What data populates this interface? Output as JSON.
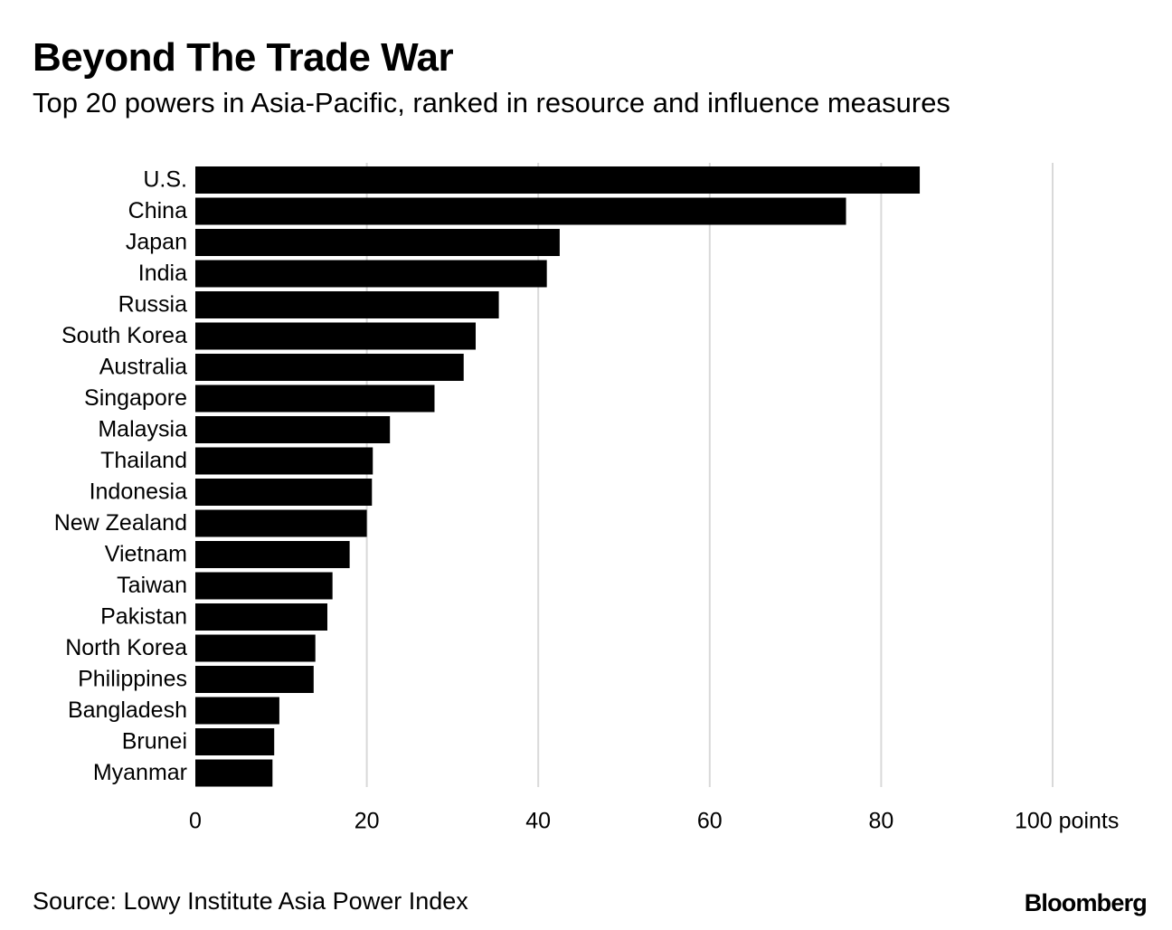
{
  "header": {
    "title": "Beyond The Trade War",
    "subtitle": "Top 20 powers in Asia-Pacific, ranked in resource and influence measures"
  },
  "footer": {
    "source": "Source: Lowy Institute Asia Power Index",
    "brand": "Bloomberg"
  },
  "colors": {
    "bar": "#000000",
    "grid": "#d9d9d9",
    "text": "#000000",
    "background": "#ffffff"
  },
  "chart_data": {
    "type": "bar",
    "orientation": "horizontal",
    "title": "Beyond The Trade War",
    "subtitle": "Top 20 powers in Asia-Pacific, ranked in resource and influence measures",
    "categories": [
      "U.S.",
      "China",
      "Japan",
      "India",
      "Russia",
      "South Korea",
      "Australia",
      "Singapore",
      "Malaysia",
      "Thailand",
      "Indonesia",
      "New Zealand",
      "Vietnam",
      "Taiwan",
      "Pakistan",
      "North Korea",
      "Philippines",
      "Bangladesh",
      "Brunei",
      "Myanmar"
    ],
    "values": [
      84.5,
      75.9,
      42.5,
      41.0,
      35.4,
      32.7,
      31.3,
      27.9,
      22.7,
      20.7,
      20.6,
      20.0,
      18.0,
      16.0,
      15.4,
      14.0,
      13.8,
      9.8,
      9.2,
      9.0
    ],
    "xlim": [
      0,
      100
    ],
    "xticks": [
      0,
      20,
      40,
      60,
      80,
      100
    ],
    "xtick_labels": [
      "0",
      "20",
      "40",
      "60",
      "80",
      "100 points"
    ],
    "xlabel": "",
    "ylabel": "",
    "grid": true,
    "legend": "none"
  }
}
